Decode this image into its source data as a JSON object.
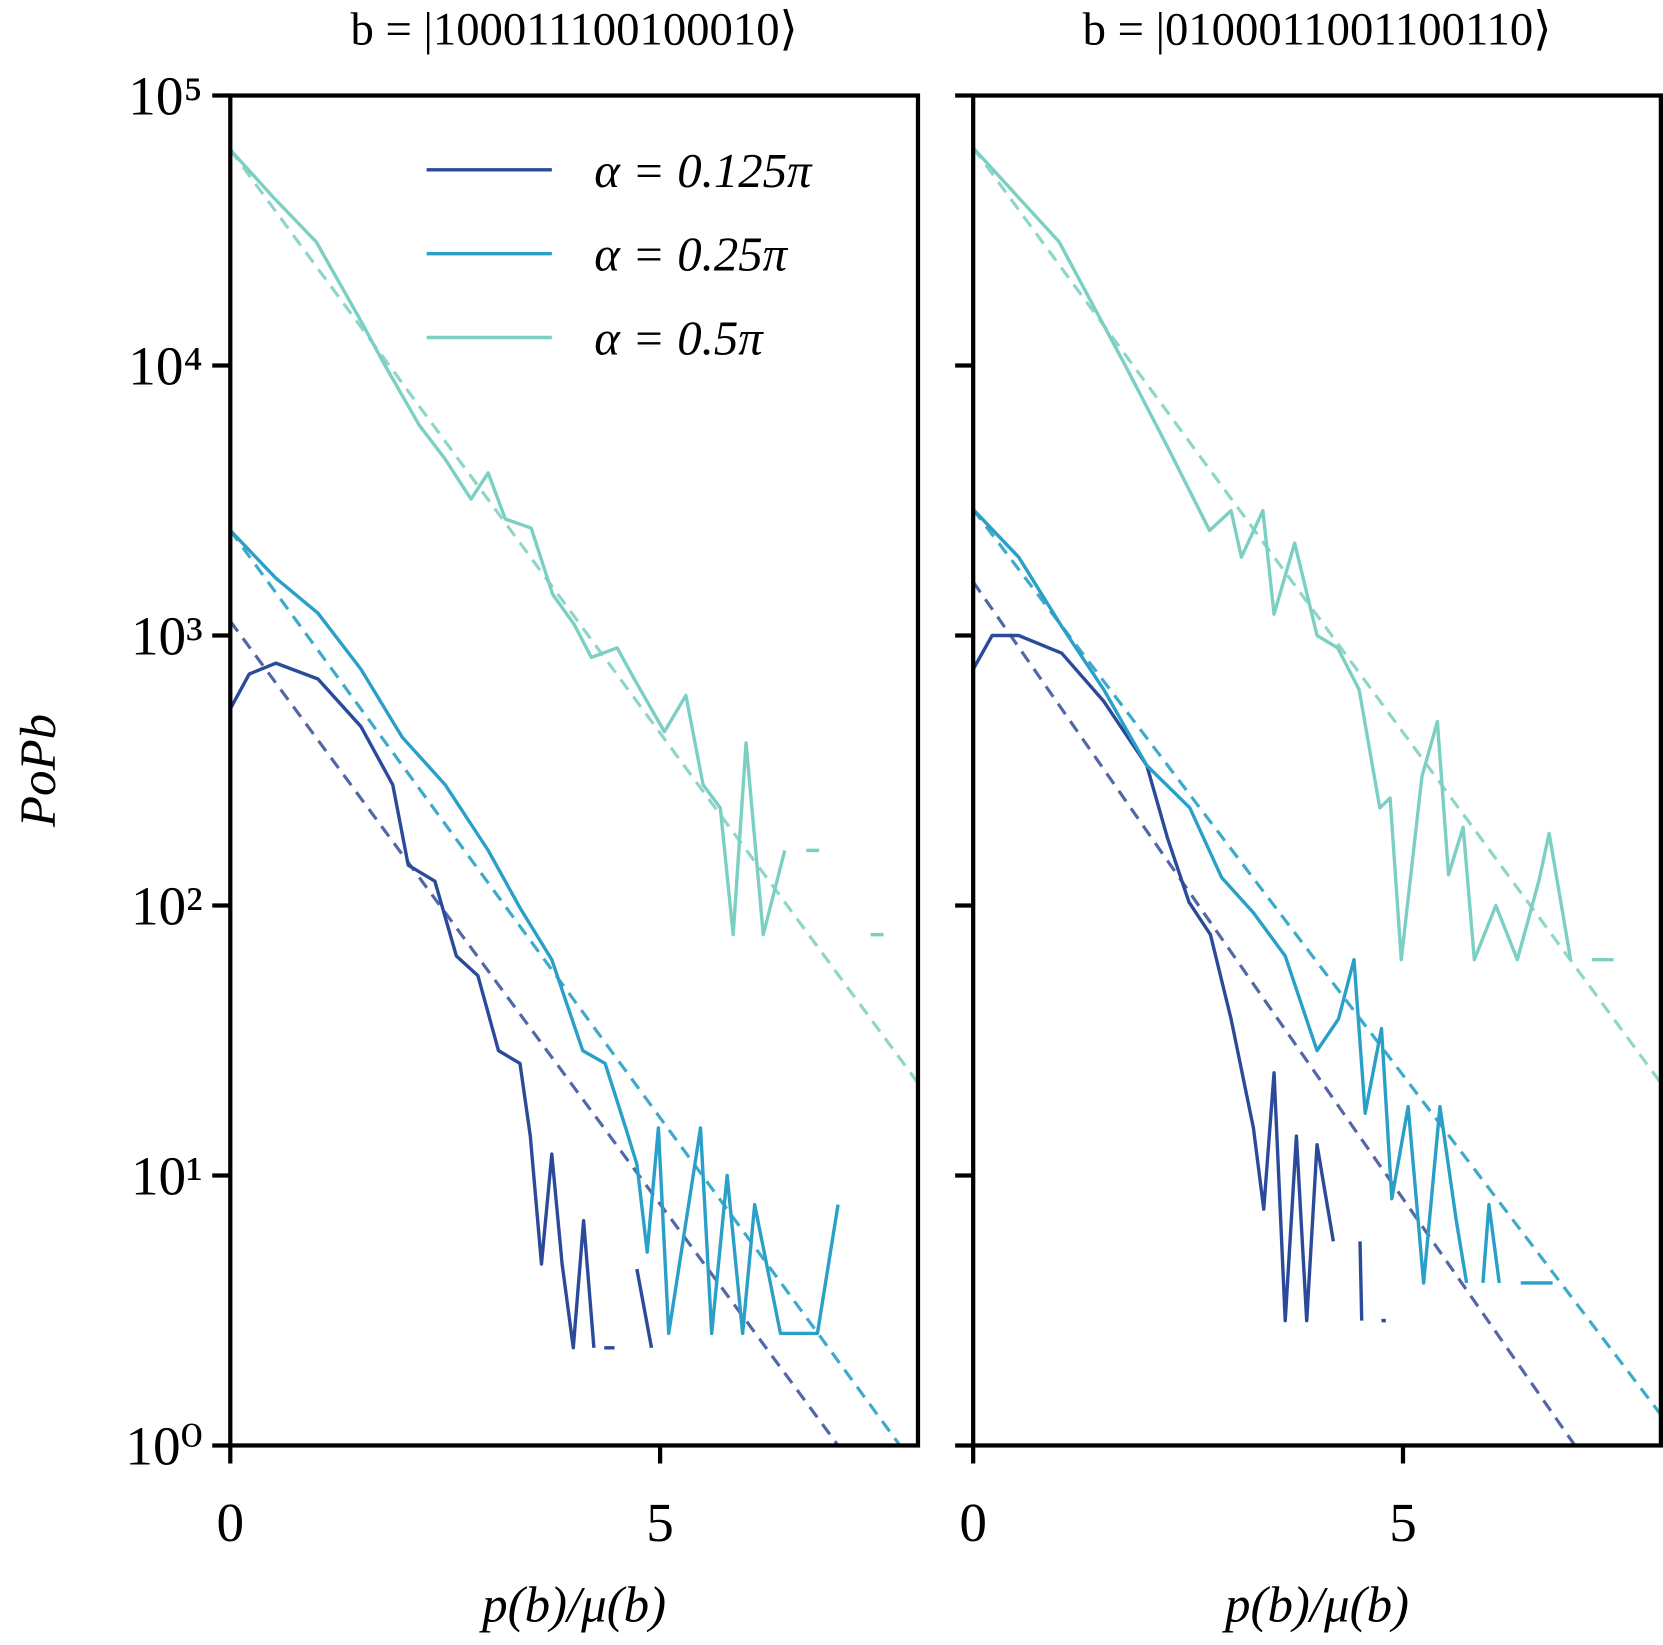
{
  "chart_data": [
    {
      "type": "line",
      "title": "b = |100011100100010⟩",
      "ylabel": "PoPb",
      "xlabel": "p(b)/μ(b)",
      "yscale": "log",
      "xlim": [
        0,
        8
      ],
      "ylim": [
        1,
        100000
      ],
      "xticks": [
        0,
        5
      ],
      "yticks": [
        {
          "value": 1,
          "label": "10⁰"
        },
        {
          "value": 10,
          "label": "10¹"
        },
        {
          "value": 100,
          "label": "10²"
        },
        {
          "value": 1000,
          "label": "10³"
        },
        {
          "value": 10000,
          "label": "10⁴"
        },
        {
          "value": 100000,
          "label": "10⁵"
        }
      ],
      "legend": "upper right",
      "series": [
        {
          "name": "α = 0.125π",
          "color": "#2b4a9a",
          "x": [
            0,
            0.22,
            0.53,
            1.02,
            1.52,
            1.89,
            2.07,
            2.38,
            2.63,
            2.88,
            3.12,
            3.37,
            3.49,
            3.62,
            3.74,
            3.86,
            3.99,
            4.11,
            4.23,
            4.29,
            4.35,
            4.47,
            4.6,
            4.73,
            4.9
          ],
          "values": [
            535,
            720,
            790,
            690,
            460,
            280,
            141,
            123,
            65,
            55,
            29,
            26,
            14,
            4.7,
            12,
            4.7,
            2.3,
            6.8,
            2.3,
            null,
            2.3,
            2.3,
            null,
            4.5,
            2.3
          ]
        },
        {
          "name": "α = 0.25π",
          "color": "#2aa0c8",
          "x": [
            0,
            0.53,
            1.02,
            1.52,
            2.0,
            2.5,
            3.0,
            3.37,
            3.74,
            4.1,
            4.36,
            4.6,
            4.73,
            4.85,
            4.98,
            5.1,
            5.47,
            5.6,
            5.78,
            5.96,
            6.1,
            6.4,
            6.83,
            7.07
          ],
          "values": [
            2450,
            1630,
            1210,
            750,
            420,
            280,
            160,
            98,
            63,
            29,
            26,
            15,
            11,
            5.2,
            15,
            2.6,
            15,
            2.6,
            10,
            2.6,
            7.8,
            2.6,
            2.6,
            7.8
          ]
        },
        {
          "name": "α = 0.5π",
          "color": "#7ccfc3",
          "x": [
            0,
            0.5,
            1,
            1.5,
            1.8,
            2.2,
            2.5,
            2.8,
            3.0,
            3.2,
            3.5,
            3.75,
            4.0,
            4.2,
            4.5,
            4.7,
            5.05,
            5.3,
            5.5,
            5.7,
            5.85,
            6.0,
            6.2,
            6.45,
            6.55,
            6.7,
            6.85,
            7.2,
            7.45,
            7.6
          ],
          "values": [
            63000,
            42000,
            28700,
            15000,
            10000,
            6000,
            4500,
            3200,
            4000,
            2700,
            2500,
            1420,
            1100,
            830,
            900,
            690,
            440,
            600,
            280,
            230,
            78,
            400,
            78,
            160,
            null,
            160,
            160,
            null,
            78,
            78
          ]
        }
      ],
      "fits": [
        {
          "color": "#5366a8",
          "x": [
            0,
            7.07
          ],
          "values": [
            1130,
            1
          ]
        },
        {
          "color": "#3eaacb",
          "x": [
            0,
            7.79
          ],
          "values": [
            2450,
            1
          ]
        },
        {
          "color": "#8fd6ca",
          "x": [
            0,
            8
          ],
          "values": [
            63000,
            22
          ]
        }
      ]
    },
    {
      "type": "line",
      "title": "b = |0100011001100110⟩",
      "xlabel": "p(b)/μ(b)",
      "yscale": "log",
      "xlim": [
        0,
        8
      ],
      "ylim": [
        1,
        100000
      ],
      "xticks": [
        0,
        5
      ],
      "series": [
        {
          "color": "#2b4a9a",
          "x": [
            0,
            0.22,
            0.53,
            1.03,
            1.52,
            2.02,
            2.26,
            2.51,
            2.76,
            3.0,
            3.26,
            3.38,
            3.5,
            3.63,
            3.76,
            3.88,
            4.0,
            4.19,
            4.35,
            4.5,
            4.52,
            4.64,
            4.75,
            4.8
          ],
          "values": [
            750,
            1000,
            1000,
            860,
            570,
            330,
            178,
            103,
            78,
            38,
            15,
            7.5,
            24,
            2.9,
            14,
            2.9,
            13,
            5.7,
            null,
            5.7,
            2.9,
            null,
            2.9,
            2.9
          ]
        },
        {
          "color": "#2aa0c8",
          "x": [
            0,
            0.53,
            1.03,
            1.52,
            2.02,
            2.52,
            2.89,
            3.26,
            3.63,
            4.0,
            4.25,
            4.43,
            4.56,
            4.75,
            4.87,
            5.06,
            5.24,
            5.43,
            5.62,
            5.74,
            5.84,
            5.93,
            6.0,
            6.12,
            6.25,
            6.37,
            6.74
          ],
          "values": [
            2930,
            1950,
            1080,
            630,
            330,
            230,
            127,
            94,
            65,
            29,
            38,
            63,
            17,
            35,
            8.2,
            18,
            4.0,
            18,
            6.8,
            4.0,
            null,
            4.0,
            7.8,
            4.0,
            null,
            4.0,
            4.0
          ]
        },
        {
          "color": "#7ccfc3",
          "x": [
            0,
            1.0,
            1.77,
            2.26,
            2.75,
            3.0,
            3.12,
            3.37,
            3.5,
            3.74,
            4.0,
            4.24,
            4.49,
            4.73,
            4.85,
            4.98,
            5.22,
            5.4,
            5.53,
            5.7,
            5.83,
            6.08,
            6.33,
            6.58,
            6.7,
            6.95,
            7.08,
            7.2,
            7.45
          ],
          "values": [
            64000,
            28700,
            10000,
            5000,
            2450,
            2900,
            1950,
            2900,
            1200,
            2200,
            1000,
            900,
            630,
            230,
            250,
            63,
            300,
            480,
            130,
            195,
            63,
            100,
            63,
            123,
            185,
            63,
            null,
            63,
            63
          ]
        }
      ],
      "fits": [
        {
          "color": "#5366a8",
          "x": [
            0,
            7
          ],
          "values": [
            1580,
            1
          ]
        },
        {
          "color": "#3eaacb",
          "x": [
            0,
            8
          ],
          "values": [
            2930,
            1.3
          ]
        },
        {
          "color": "#8fd6ca",
          "x": [
            0,
            8
          ],
          "values": [
            64000,
            22
          ]
        }
      ]
    }
  ]
}
